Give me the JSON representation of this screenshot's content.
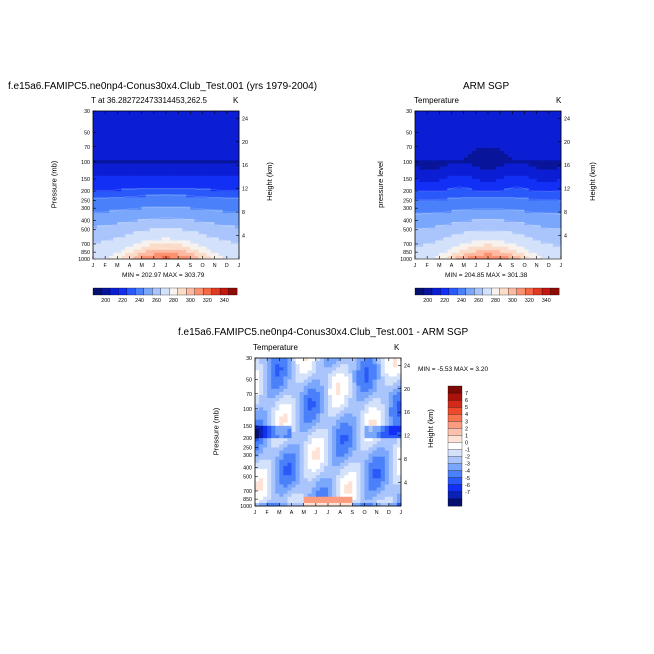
{
  "colors": {
    "temp_levels": [
      "#05106f",
      "#08159a",
      "#0c1ed4",
      "#1230f5",
      "#2a59fa",
      "#4a80f9",
      "#7aa6fb",
      "#a9c5fb",
      "#d3e1fb",
      "#f7f2ee",
      "#fbdcc9",
      "#fdb9a2",
      "#fb9170",
      "#f36846",
      "#df3a22",
      "#c2180f",
      "#8c0d06"
    ],
    "diff_levels": [
      "#05106f",
      "#0a20b6",
      "#1230f5",
      "#2a59fa",
      "#4a80f9",
      "#7aa6fb",
      "#a9c5fb",
      "#d3e1fb",
      "#ffffff",
      "#fde2d5",
      "#fcc1ad",
      "#fb9c80",
      "#f7724f",
      "#ec4a2b",
      "#d2291a",
      "#aa130b",
      "#7c0a05"
    ]
  },
  "chart_data": [
    {
      "type": "heatmap",
      "name": "model",
      "title": "f.e15a6.FAMIPC5.ne0np4-Conus30x4.Club_Test.001 (yrs 1979-2004)",
      "subtitle_left": "T at 36.282722473314453,262.5",
      "subtitle_right": "K",
      "xlabel": "",
      "ylabel": "Pressure (mb)",
      "ylabel_right": "Height (km)",
      "x_ticks": [
        "J",
        "F",
        "M",
        "A",
        "M",
        "J",
        "J",
        "A",
        "S",
        "O",
        "N",
        "D",
        "J"
      ],
      "y_ticks": [
        "30",
        "50",
        "70",
        "100",
        "150",
        "200",
        "250",
        "300",
        "400",
        "500",
        "700",
        "850",
        "1000"
      ],
      "height_ticks": [
        "24",
        "20",
        "16",
        "12",
        "8",
        "4"
      ],
      "ylim": [
        30,
        1000
      ],
      "minmax": "MIN = 202.97  MAX = 303.79",
      "colorbar_labels": [
        "200",
        "220",
        "240",
        "260",
        "280",
        "300",
        "320",
        "340"
      ],
      "levels": [
        195,
        200,
        210,
        220,
        230,
        240,
        250,
        260,
        270,
        280,
        285,
        290,
        295,
        300,
        310,
        320,
        340
      ],
      "boundaries_mb": {
        "b205": [
          40,
          45,
          50,
          56,
          62,
          68,
          72,
          74,
          72,
          64,
          52,
          45,
          42
        ],
        "b210": [
          90,
          92,
          105,
          120,
          130,
          125,
          118,
          120,
          125,
          130,
          115,
          100,
          90
        ],
        "b215": [
          150,
          150,
          150,
          148,
          120,
          110,
          110,
          110,
          110,
          120,
          150,
          150,
          150
        ]
      },
      "min": 202.97,
      "max": 303.79
    },
    {
      "type": "heatmap",
      "name": "obs",
      "title": "ARM SGP",
      "subtitle_left": "Temperature",
      "subtitle_right": "K",
      "xlabel": "",
      "ylabel": "pressure level",
      "ylabel_right": "Height (km)",
      "x_ticks": [
        "J",
        "F",
        "M",
        "A",
        "M",
        "J",
        "J",
        "A",
        "S",
        "O",
        "N",
        "D",
        "J"
      ],
      "y_ticks": [
        "30",
        "50",
        "70",
        "100",
        "150",
        "200",
        "250",
        "300",
        "400",
        "500",
        "700",
        "850",
        "1000"
      ],
      "height_ticks": [
        "24",
        "20",
        "16",
        "12",
        "8",
        "4"
      ],
      "ylim": [
        30,
        1000
      ],
      "minmax": "MIN = 204.85  MAX = 301.38",
      "colorbar_labels": [
        "200",
        "220",
        "240",
        "260",
        "280",
        "300",
        "320",
        "340"
      ],
      "min": 204.85,
      "max": 301.38
    },
    {
      "type": "heatmap",
      "name": "difference",
      "title": "f.e15a6.FAMIPC5.ne0np4-Conus30x4.Club_Test.001 - ARM SGP",
      "subtitle_left": "Temperature",
      "subtitle_right": "K",
      "ylabel": "Pressure (mb)",
      "ylabel_right": "Height (km)",
      "x_ticks": [
        "J",
        "F",
        "M",
        "A",
        "M",
        "J",
        "J",
        "A",
        "S",
        "O",
        "N",
        "D",
        "J"
      ],
      "y_ticks": [
        "30",
        "50",
        "70",
        "100",
        "150",
        "200",
        "250",
        "300",
        "400",
        "500",
        "700",
        "850",
        "1000"
      ],
      "height_ticks": [
        "24",
        "20",
        "16",
        "12",
        "8",
        "4"
      ],
      "ylim": [
        30,
        1000
      ],
      "minmax": "MIN =  -5.53 MAX =   3.20",
      "colorbar_labels": [
        "7",
        "6",
        "5",
        "4",
        "3",
        "2",
        "1",
        "0",
        "-1",
        "-2",
        "-3",
        "-4",
        "-5",
        "-6",
        "-7"
      ],
      "min": -5.53,
      "max": 3.2
    }
  ]
}
